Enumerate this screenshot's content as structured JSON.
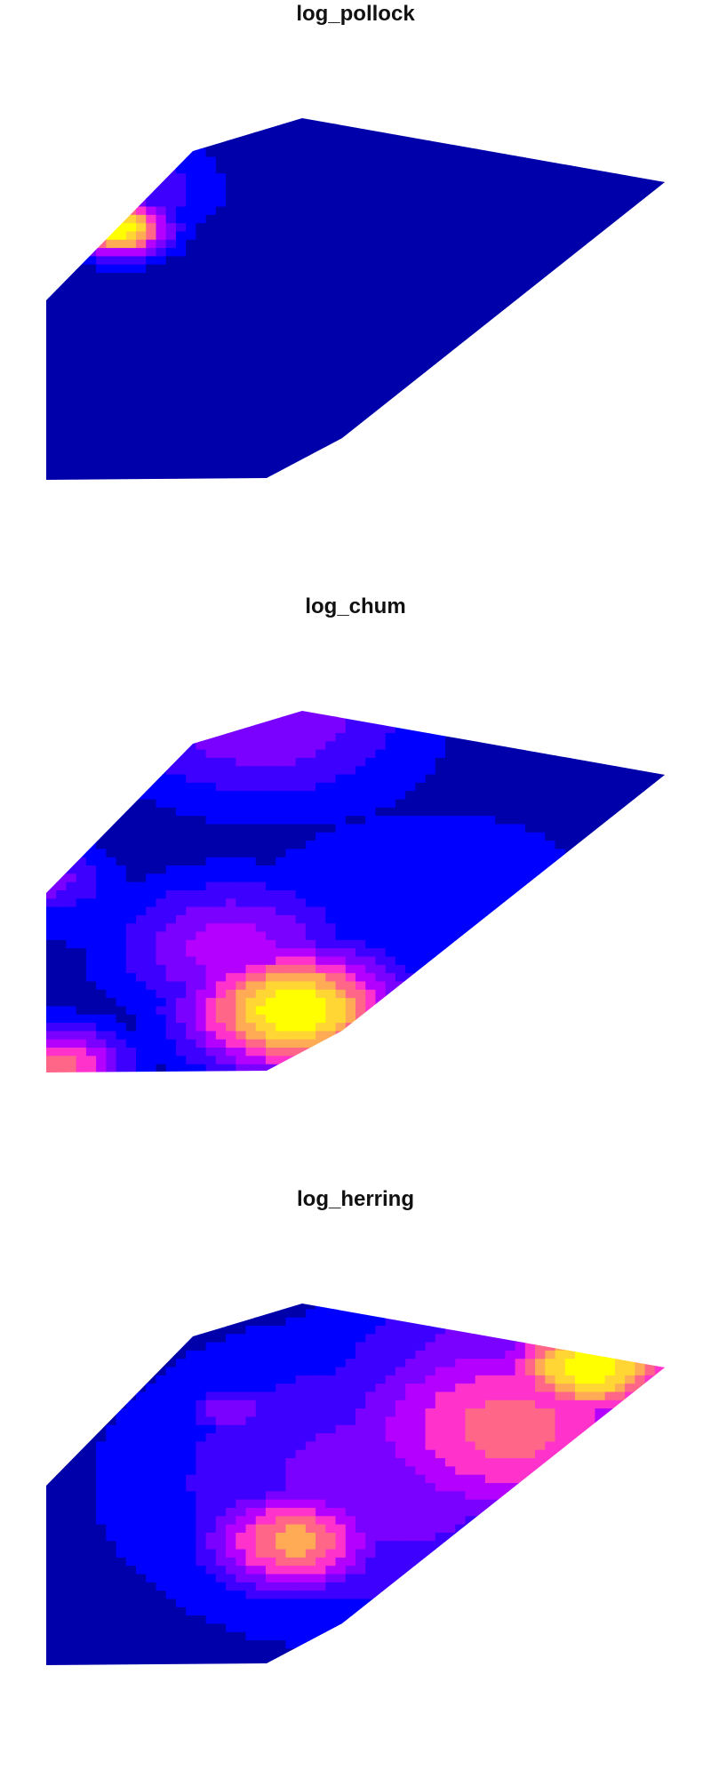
{
  "chart_data": [
    {
      "type": "heatmap",
      "title": "log_pollock",
      "grid": false,
      "legend": "none",
      "color_scale": [
        "#0000aa",
        "#0000ff",
        "#3d00ff",
        "#7a00ff",
        "#b400ff",
        "#ff33cc",
        "#ff6688",
        "#ffaa55",
        "#ffd633",
        "#ffff00"
      ],
      "hotspots": [
        {
          "x": 0.12,
          "y": 0.31,
          "value": 1.0,
          "radius": 0.055
        },
        {
          "x": 0.14,
          "y": 0.2,
          "value": 0.3,
          "radius": 0.1
        }
      ]
    },
    {
      "type": "heatmap",
      "title": "log_chum",
      "grid": false,
      "legend": "none",
      "color_scale": [
        "#0000aa",
        "#0000ff",
        "#3d00ff",
        "#7a00ff",
        "#b400ff",
        "#ff33cc",
        "#ff6688",
        "#ffaa55",
        "#ffd633",
        "#ffff00"
      ],
      "hotspots": [
        {
          "x": 0.4,
          "y": 0.83,
          "value": 1.0,
          "radius": 0.12
        },
        {
          "x": 0.3,
          "y": 0.66,
          "value": 0.45,
          "radius": 0.14
        },
        {
          "x": 0.02,
          "y": 0.98,
          "value": 0.65,
          "radius": 0.08
        },
        {
          "x": 0.35,
          "y": 0.02,
          "value": 0.4,
          "radius": 0.18
        },
        {
          "x": 0.0,
          "y": 0.47,
          "value": 0.35,
          "radius": 0.08
        }
      ],
      "baseline": [
        {
          "x": 0.4,
          "y": 0.08,
          "value": 0.16,
          "radius": 0.25
        },
        {
          "x": 0.62,
          "y": 0.58,
          "value": 0.16,
          "radius": 0.3
        },
        {
          "x": 0.05,
          "y": 0.55,
          "value": 0.14,
          "radius": 0.12
        }
      ]
    },
    {
      "type": "heatmap",
      "title": "log_herring",
      "grid": false,
      "legend": "none",
      "color_scale": [
        "#0000aa",
        "#0000ff",
        "#3d00ff",
        "#7a00ff",
        "#b400ff",
        "#ff33cc",
        "#ff6688",
        "#ffaa55",
        "#ffd633",
        "#ffff00"
      ],
      "hotspots": [
        {
          "x": 0.88,
          "y": 0.18,
          "value": 1.0,
          "radius": 0.1
        },
        {
          "x": 0.75,
          "y": 0.35,
          "value": 0.65,
          "radius": 0.2
        },
        {
          "x": 0.4,
          "y": 0.66,
          "value": 0.75,
          "radius": 0.1
        },
        {
          "x": 0.3,
          "y": 0.3,
          "value": 0.4,
          "radius": 0.05
        }
      ],
      "baseline": [
        {
          "x": 0.55,
          "y": 0.5,
          "value": 0.35,
          "radius": 0.3
        },
        {
          "x": 0.8,
          "y": 0.25,
          "value": 0.45,
          "radius": 0.25
        }
      ]
    }
  ]
}
